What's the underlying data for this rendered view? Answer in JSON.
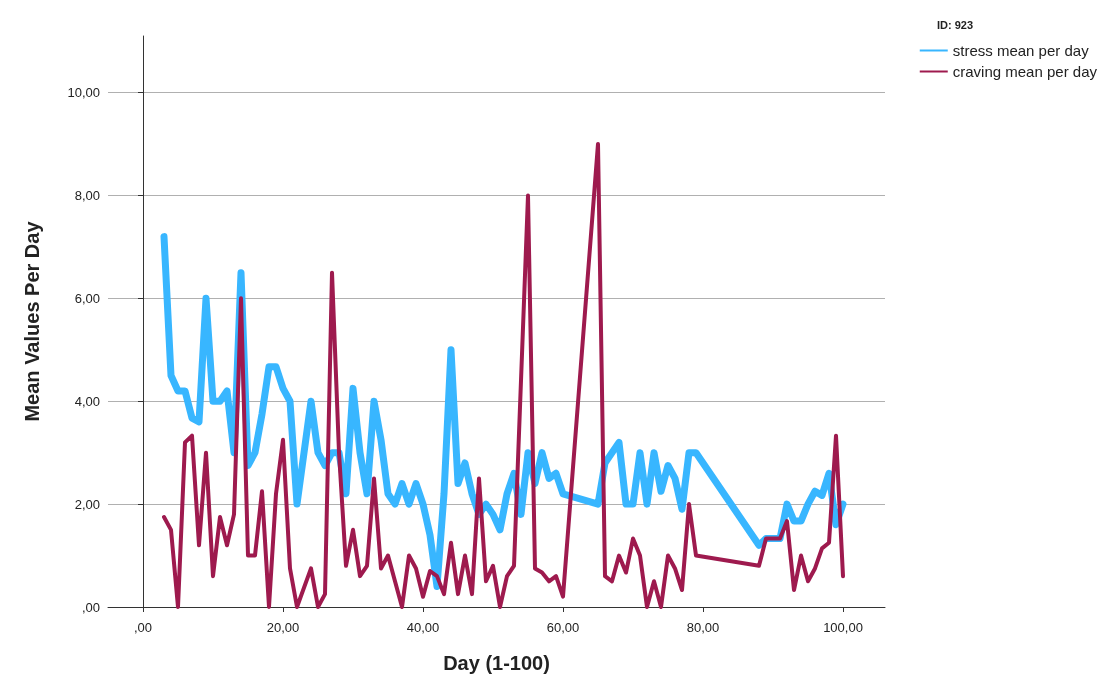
{
  "chart_data": {
    "type": "line",
    "xlabel": "Day (1-100)",
    "ylabel": "Mean Values Per Day",
    "legend_title": "ID: 923",
    "legend": "top right",
    "grid": "y",
    "marker": "none",
    "line_style": "solid",
    "xlim": [
      -5,
      106
    ],
    "ylim": [
      0,
      11.1
    ],
    "xticks": [
      {
        "value": 0,
        "label": ",00"
      },
      {
        "value": 20,
        "label": "20,00"
      },
      {
        "value": 40,
        "label": "40,00"
      },
      {
        "value": 60,
        "label": "60,00"
      },
      {
        "value": 80,
        "label": "80,00"
      },
      {
        "value": 100,
        "label": "100,00"
      }
    ],
    "yticks": [
      {
        "value": 0,
        "label": ",00"
      },
      {
        "value": 2,
        "label": "2,00"
      },
      {
        "value": 4,
        "label": "4,00"
      },
      {
        "value": 6,
        "label": "6,00"
      },
      {
        "value": 8,
        "label": "8,00"
      },
      {
        "value": 10,
        "label": "10,00"
      }
    ],
    "series": [
      {
        "name": "stress mean per day",
        "color": "#38b6ff",
        "x": [
          3,
          4,
          5,
          6,
          7,
          8,
          9,
          10,
          11,
          12,
          13,
          14,
          15,
          16,
          17,
          18,
          19,
          20,
          21,
          22,
          23,
          24,
          25,
          26,
          27,
          28,
          29,
          30,
          31,
          32,
          33,
          34,
          35,
          36,
          37,
          38,
          39,
          40,
          41,
          42,
          43,
          44,
          45,
          46,
          47,
          48,
          49,
          50,
          51,
          52,
          53,
          54,
          55,
          56,
          57,
          58,
          59,
          60,
          65,
          66,
          68,
          69,
          70,
          71,
          72,
          73,
          74,
          75,
          76,
          77,
          78,
          79,
          88,
          89,
          91,
          92,
          93,
          94,
          95,
          96,
          97,
          98,
          99,
          100
        ],
        "values": [
          7.2,
          4.5,
          4.2,
          4.2,
          3.67,
          3.6,
          6,
          4,
          4,
          4.2,
          3,
          6.5,
          2.75,
          3,
          3.75,
          4.67,
          4.67,
          4.25,
          4,
          2,
          3,
          4,
          3,
          2.75,
          3,
          3,
          2.2,
          4.25,
          3,
          2.2,
          4,
          3.25,
          2.2,
          2,
          2.4,
          2,
          2.4,
          2,
          1.4,
          0.4,
          2.2,
          5,
          2.4,
          2.8,
          2.2,
          1.8,
          2,
          1.8,
          1.5,
          2.2,
          2.6,
          1.8,
          3,
          2.4,
          3,
          2.5,
          2.6,
          2.2,
          2,
          2.8,
          3.2,
          2,
          2,
          3,
          2,
          3,
          2.25,
          2.75,
          2.5,
          1.9,
          3,
          3,
          1.2,
          1.33,
          1.33,
          2,
          1.67,
          1.67,
          2,
          2.25,
          2.17,
          2.6,
          1.6,
          2
        ]
      },
      {
        "name": "craving mean per day",
        "color": "#9e1a4e",
        "x": [
          3,
          4,
          5,
          6,
          7,
          8,
          9,
          10,
          11,
          12,
          13,
          14,
          15,
          16,
          17,
          18,
          19,
          20,
          21,
          22,
          24,
          25,
          26,
          27,
          28,
          29,
          30,
          31,
          32,
          33,
          34,
          35,
          36,
          37,
          38,
          39,
          40,
          41,
          42,
          43,
          44,
          45,
          46,
          47,
          48,
          49,
          50,
          51,
          52,
          53,
          55,
          56,
          57,
          58,
          59,
          60,
          65,
          66,
          67,
          68,
          69,
          70,
          71,
          72,
          73,
          74,
          75,
          76,
          77,
          78,
          79,
          88,
          89,
          91,
          92,
          93,
          94,
          95,
          96,
          97,
          98,
          99,
          100
        ],
        "values": [
          1.75,
          1.5,
          0,
          3.2,
          3.33,
          1.2,
          3,
          0.6,
          1.75,
          1.2,
          1.8,
          6,
          1,
          1,
          2.25,
          0,
          2.2,
          3.25,
          0.75,
          0,
          0.75,
          0,
          0.25,
          6.5,
          3,
          0.8,
          1.5,
          0.6,
          0.8,
          2.5,
          0.75,
          1,
          0.5,
          0,
          1,
          0.75,
          0.2,
          0.7,
          0.6,
          0.25,
          1.25,
          0.25,
          1,
          0.25,
          2.5,
          0.5,
          0.8,
          0,
          0.6,
          0.8,
          8,
          0.75,
          0.67,
          0.5,
          0.6,
          0.2,
          9,
          0.6,
          0.5,
          1,
          0.67,
          1.33,
          1,
          0,
          0.5,
          0,
          1,
          0.75,
          0.33,
          2,
          1,
          0.8,
          1.33,
          1.33,
          1.67,
          0.33,
          1,
          0.5,
          0.75,
          1.14,
          1.25,
          3.33,
          0.6
        ]
      }
    ]
  }
}
